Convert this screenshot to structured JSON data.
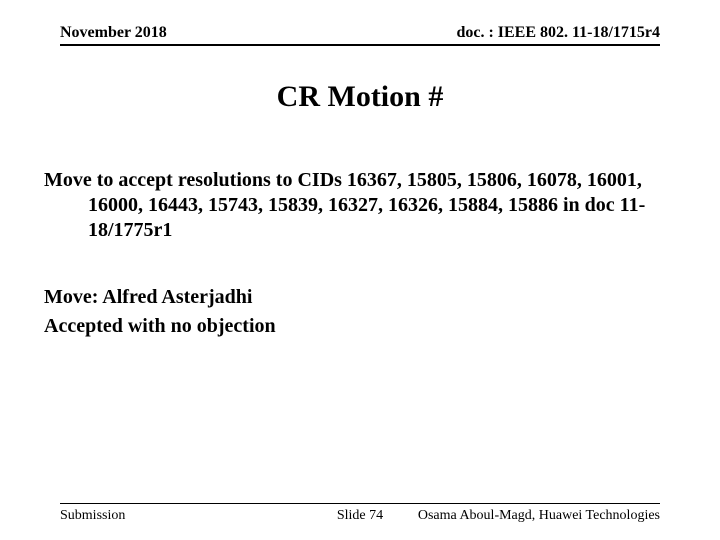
{
  "header": {
    "date": "November 2018",
    "docnum": "doc. : IEEE 802. 11-18/1715r4"
  },
  "title": "CR Motion #",
  "body": {
    "motion": "Move to accept resolutions to CIDs 16367, 15805, 15806, 16078, 16001, 16000, 16443, 15743, 15839, 16327, 16326, 15884, 15886 in doc 11-18/1775r1",
    "mover": "Move: Alfred Asterjadhi",
    "status": "Accepted with no objection"
  },
  "footer": {
    "left": "Submission",
    "center": "Slide 74",
    "right": "Osama Aboul-Magd, Huawei Technologies"
  },
  "style": {
    "background_color": "#ffffff",
    "text_color": "#000000",
    "header_fontsize": 16,
    "title_fontsize": 30,
    "body_fontsize": 20,
    "footer_fontsize": 14,
    "font_family": "Times New Roman",
    "rule_color": "#000000"
  }
}
